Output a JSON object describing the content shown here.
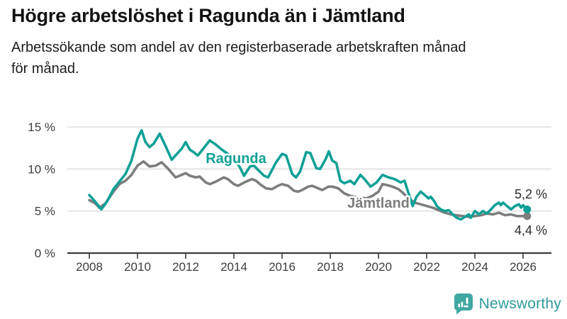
{
  "chart_data": {
    "type": "line",
    "title": "Högre arbetslöshet i Ragunda än i Jämtland",
    "subtitle_lines": [
      "Arbetssökande som andel av den registerbaserade arbetskraften månad",
      "för månad."
    ],
    "grid": true,
    "ylim": [
      0,
      16
    ],
    "xlim": [
      2007.1,
      2027.2
    ],
    "y_ticks": [
      {
        "v": 0,
        "label": "0 %"
      },
      {
        "v": 5,
        "label": "5 %"
      },
      {
        "v": 10,
        "label": "10 %"
      },
      {
        "v": 15,
        "label": "15 %"
      }
    ],
    "x_ticks": [
      {
        "v": 2008,
        "label": "2008"
      },
      {
        "v": 2010,
        "label": "2010"
      },
      {
        "v": 2012,
        "label": "2012"
      },
      {
        "v": 2014,
        "label": "2014"
      },
      {
        "v": 2016,
        "label": "2016"
      },
      {
        "v": 2018,
        "label": "2018"
      },
      {
        "v": 2020,
        "label": "2020"
      },
      {
        "v": 2022,
        "label": "2022"
      },
      {
        "v": 2024,
        "label": "2024"
      },
      {
        "v": 2026,
        "label": "2026"
      }
    ],
    "series": [
      {
        "name": "Ragunda",
        "color": "#0fa096",
        "end_label": "5,2 %",
        "end_value": 5.2,
        "points": [
          [
            2008.0,
            6.9
          ],
          [
            2008.25,
            6.1
          ],
          [
            2008.5,
            5.2
          ],
          [
            2008.75,
            6.2
          ],
          [
            2009.0,
            7.6
          ],
          [
            2009.25,
            8.5
          ],
          [
            2009.5,
            9.4
          ],
          [
            2009.75,
            11.0
          ],
          [
            2010.0,
            13.6
          ],
          [
            2010.17,
            14.6
          ],
          [
            2010.33,
            13.2
          ],
          [
            2010.5,
            12.6
          ],
          [
            2010.67,
            13.0
          ],
          [
            2010.92,
            14.2
          ],
          [
            2011.17,
            12.7
          ],
          [
            2011.42,
            11.1
          ],
          [
            2011.67,
            11.9
          ],
          [
            2011.83,
            12.4
          ],
          [
            2012.0,
            13.2
          ],
          [
            2012.17,
            12.3
          ],
          [
            2012.33,
            12.0
          ],
          [
            2012.5,
            11.6
          ],
          [
            2012.67,
            12.2
          ],
          [
            2013.0,
            13.4
          ],
          [
            2013.25,
            12.9
          ],
          [
            2013.5,
            12.3
          ],
          [
            2013.75,
            11.8
          ],
          [
            2014.0,
            11.3
          ],
          [
            2014.25,
            10.2
          ],
          [
            2014.42,
            9.2
          ],
          [
            2014.67,
            10.3
          ],
          [
            2014.83,
            10.4
          ],
          [
            2015.0,
            9.9
          ],
          [
            2015.25,
            9.2
          ],
          [
            2015.42,
            9.0
          ],
          [
            2015.75,
            10.8
          ],
          [
            2016.0,
            11.8
          ],
          [
            2016.17,
            11.6
          ],
          [
            2016.42,
            9.4
          ],
          [
            2016.58,
            9.0
          ],
          [
            2016.75,
            9.7
          ],
          [
            2017.0,
            12.0
          ],
          [
            2017.17,
            11.9
          ],
          [
            2017.42,
            10.1
          ],
          [
            2017.58,
            10.0
          ],
          [
            2017.83,
            11.3
          ],
          [
            2017.94,
            12.1
          ],
          [
            2018.08,
            11.0
          ],
          [
            2018.25,
            10.7
          ],
          [
            2018.42,
            8.6
          ],
          [
            2018.58,
            8.3
          ],
          [
            2018.83,
            8.6
          ],
          [
            2019.0,
            8.2
          ],
          [
            2019.25,
            9.3
          ],
          [
            2019.42,
            8.8
          ],
          [
            2019.67,
            7.9
          ],
          [
            2019.92,
            8.4
          ],
          [
            2020.17,
            9.3
          ],
          [
            2020.42,
            9.0
          ],
          [
            2020.67,
            8.8
          ],
          [
            2020.92,
            8.4
          ],
          [
            2021.08,
            8.6
          ],
          [
            2021.17,
            7.8
          ],
          [
            2021.42,
            5.6
          ],
          [
            2021.58,
            6.7
          ],
          [
            2021.75,
            7.3
          ],
          [
            2021.92,
            6.9
          ],
          [
            2022.08,
            6.5
          ],
          [
            2022.17,
            6.7
          ],
          [
            2022.33,
            6.1
          ],
          [
            2022.42,
            5.6
          ],
          [
            2022.58,
            5.2
          ],
          [
            2022.75,
            5.0
          ],
          [
            2022.92,
            5.1
          ],
          [
            2023.08,
            4.6
          ],
          [
            2023.25,
            4.2
          ],
          [
            2023.42,
            4.0
          ],
          [
            2023.58,
            4.3
          ],
          [
            2023.75,
            4.6
          ],
          [
            2023.83,
            4.2
          ],
          [
            2024.0,
            5.0
          ],
          [
            2024.17,
            4.6
          ],
          [
            2024.33,
            5.0
          ],
          [
            2024.5,
            4.7
          ],
          [
            2024.67,
            5.2
          ],
          [
            2024.83,
            5.7
          ],
          [
            2025.0,
            6.0
          ],
          [
            2025.08,
            5.7
          ],
          [
            2025.17,
            6.0
          ],
          [
            2025.33,
            5.6
          ],
          [
            2025.5,
            5.2
          ],
          [
            2025.67,
            5.6
          ],
          [
            2025.83,
            5.8
          ],
          [
            2025.92,
            5.4
          ],
          [
            2026.0,
            5.7
          ],
          [
            2026.08,
            5.4
          ],
          [
            2026.17,
            5.2
          ]
        ]
      },
      {
        "name": "Jämtland",
        "color": "#7d7d7d",
        "end_label": "4,4 %",
        "end_value": 4.4,
        "points": [
          [
            2008.0,
            6.3
          ],
          [
            2008.25,
            5.9
          ],
          [
            2008.42,
            5.4
          ],
          [
            2008.67,
            5.9
          ],
          [
            2009.0,
            7.3
          ],
          [
            2009.25,
            8.2
          ],
          [
            2009.5,
            8.6
          ],
          [
            2009.75,
            9.3
          ],
          [
            2010.0,
            10.4
          ],
          [
            2010.25,
            10.9
          ],
          [
            2010.5,
            10.3
          ],
          [
            2010.75,
            10.4
          ],
          [
            2011.0,
            10.8
          ],
          [
            2011.25,
            10.1
          ],
          [
            2011.58,
            9.0
          ],
          [
            2011.83,
            9.3
          ],
          [
            2012.0,
            9.5
          ],
          [
            2012.17,
            9.2
          ],
          [
            2012.42,
            9.0
          ],
          [
            2012.58,
            9.1
          ],
          [
            2012.83,
            8.4
          ],
          [
            2013.0,
            8.2
          ],
          [
            2013.25,
            8.5
          ],
          [
            2013.58,
            9.0
          ],
          [
            2013.75,
            8.8
          ],
          [
            2014.0,
            8.2
          ],
          [
            2014.17,
            8.0
          ],
          [
            2014.5,
            8.5
          ],
          [
            2014.75,
            8.8
          ],
          [
            2014.92,
            8.6
          ],
          [
            2015.08,
            8.2
          ],
          [
            2015.33,
            7.7
          ],
          [
            2015.58,
            7.6
          ],
          [
            2015.83,
            8.0
          ],
          [
            2016.0,
            8.2
          ],
          [
            2016.25,
            8.0
          ],
          [
            2016.5,
            7.4
          ],
          [
            2016.67,
            7.3
          ],
          [
            2016.83,
            7.5
          ],
          [
            2017.08,
            7.9
          ],
          [
            2017.25,
            8.0
          ],
          [
            2017.5,
            7.7
          ],
          [
            2017.67,
            7.5
          ],
          [
            2017.92,
            7.9
          ],
          [
            2018.08,
            7.9
          ],
          [
            2018.33,
            7.7
          ],
          [
            2018.58,
            7.1
          ],
          [
            2018.83,
            6.8
          ],
          [
            2019.0,
            6.7
          ],
          [
            2019.25,
            6.6
          ],
          [
            2019.5,
            6.5
          ],
          [
            2019.75,
            6.8
          ],
          [
            2020.0,
            7.3
          ],
          [
            2020.17,
            8.2
          ],
          [
            2020.33,
            8.1
          ],
          [
            2020.58,
            7.9
          ],
          [
            2020.83,
            7.6
          ],
          [
            2021.0,
            7.2
          ],
          [
            2021.25,
            6.5
          ],
          [
            2021.5,
            6.0
          ],
          [
            2021.75,
            5.8
          ],
          [
            2022.0,
            5.6
          ],
          [
            2022.25,
            5.4
          ],
          [
            2022.5,
            5.1
          ],
          [
            2022.75,
            4.8
          ],
          [
            2023.0,
            4.6
          ],
          [
            2023.25,
            4.5
          ],
          [
            2023.5,
            4.4
          ],
          [
            2023.75,
            4.3
          ],
          [
            2024.0,
            4.4
          ],
          [
            2024.25,
            4.5
          ],
          [
            2024.5,
            4.7
          ],
          [
            2024.75,
            4.6
          ],
          [
            2025.0,
            4.8
          ],
          [
            2025.25,
            4.5
          ],
          [
            2025.5,
            4.6
          ],
          [
            2025.75,
            4.4
          ],
          [
            2026.0,
            4.4
          ],
          [
            2026.17,
            4.4
          ]
        ]
      }
    ]
  },
  "footer": {
    "brand": "Newsworthy",
    "logo_icon": "bar-chart-speech-bubble",
    "logo_color": "#3fa8a1",
    "text_color": "#2e9a9e"
  },
  "theme": {
    "grid_color": "#dcdcdc",
    "axis_color": "#3c3c3c",
    "tick_text_color": "#3d3d3d"
  }
}
